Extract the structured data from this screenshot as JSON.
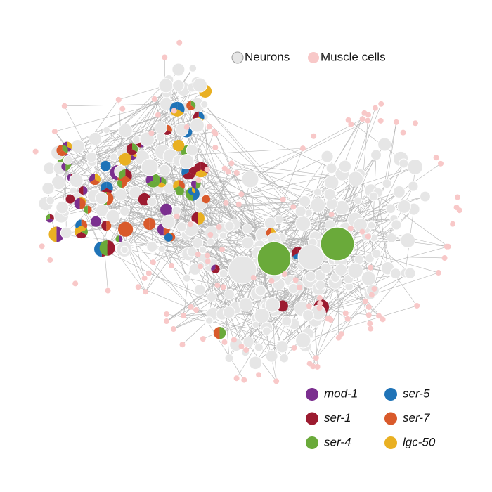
{
  "cell_legend": {
    "items": [
      {
        "label": "Neurons",
        "color": "#e6e6e6"
      },
      {
        "label": "Muscle cells",
        "color": "#f8c8c8"
      }
    ]
  },
  "receptor_legend": {
    "items": [
      {
        "label": "mod-1",
        "color": "#7b2f8f"
      },
      {
        "label": "ser-5",
        "color": "#1f73b7"
      },
      {
        "label": "ser-1",
        "color": "#9c1b30"
      },
      {
        "label": "ser-7",
        "color": "#d95a2b"
      },
      {
        "label": "ser-4",
        "color": "#6aaa3a"
      },
      {
        "label": "lgc-50",
        "color": "#e9b022"
      }
    ]
  }
}
